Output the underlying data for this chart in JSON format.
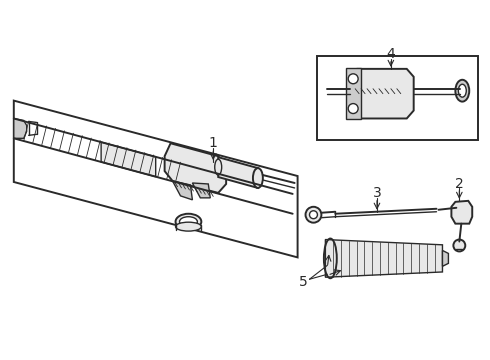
{
  "bg_color": "#ffffff",
  "line_color": "#2a2a2a",
  "fill_color": "#cccccc",
  "fill_light": "#e8e8e8",
  "figsize": [
    4.9,
    3.6
  ],
  "dpi": 100
}
